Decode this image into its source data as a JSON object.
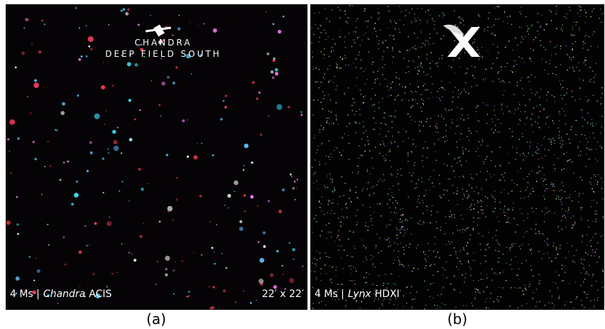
{
  "panels": [
    {
      "logo": [
        "CHANDRA",
        "DEEP FIELD SOUTH"
      ],
      "caption": [
        "4 Ms |",
        "Chandra",
        "ACIS"
      ],
      "scale": "22′ x 22′",
      "label": "(a)"
    },
    {
      "caption": [
        "4 Ms |",
        "Lynx",
        "HDXI"
      ],
      "label": "(b)"
    }
  ]
}
